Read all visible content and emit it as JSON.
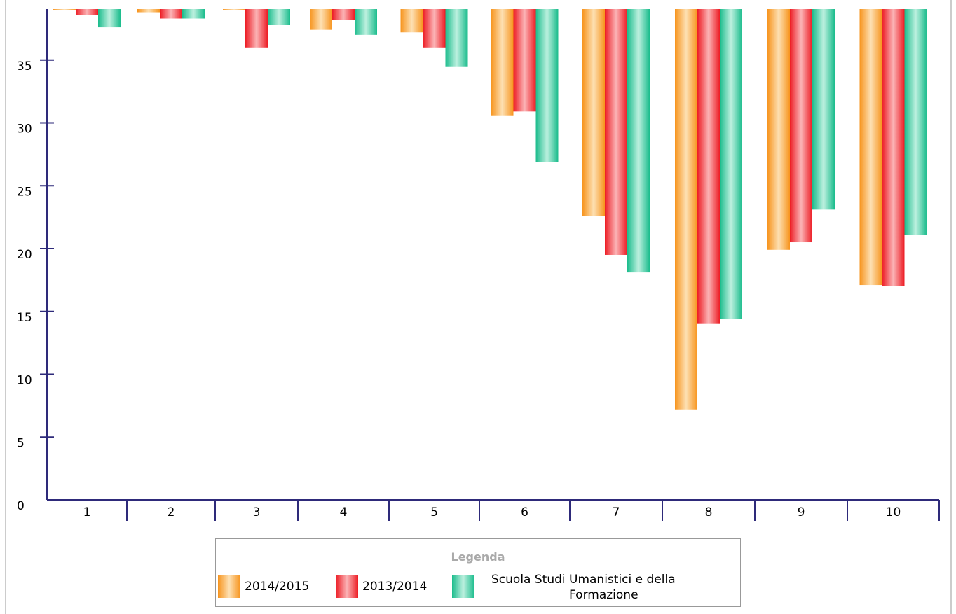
{
  "chart_data": {
    "type": "bar",
    "title": "",
    "xlabel": "",
    "ylabel": "",
    "ylim": [
      0,
      39
    ],
    "yticks": [
      0,
      5,
      10,
      15,
      20,
      25,
      30,
      35
    ],
    "categories": [
      "1",
      "2",
      "3",
      "4",
      "5",
      "6",
      "7",
      "8",
      "9",
      "10"
    ],
    "series": [
      {
        "name": "2014/2015",
        "color": "#f7941d",
        "values": [
          39,
          38.8,
          39,
          37.4,
          37.2,
          30.6,
          22.6,
          7.2,
          19.9,
          17.1
        ]
      },
      {
        "name": "2013/2014",
        "color": "#ed1c24",
        "values": [
          38.6,
          38.3,
          36,
          38.2,
          36,
          30.9,
          19.5,
          14,
          20.5,
          17
        ]
      },
      {
        "name": "Scuola Studi Umanistici e della Formazione",
        "color": "#1abc8c",
        "values": [
          37.6,
          38.3,
          37.8,
          37,
          34.5,
          26.9,
          18.1,
          14.4,
          23.1,
          21.1
        ]
      }
    ],
    "grid": false,
    "legend_position": "bottom-center"
  },
  "legend": {
    "title": "Legenda",
    "labels": [
      "2014/2015",
      "2013/2014",
      "Scuola Studi Umanistici e della",
      "Formazione"
    ]
  },
  "colors": {
    "axis": "#2e2a7a",
    "orange": "#f7941d",
    "red": "#ed1c24",
    "green": "#1abc8c"
  }
}
